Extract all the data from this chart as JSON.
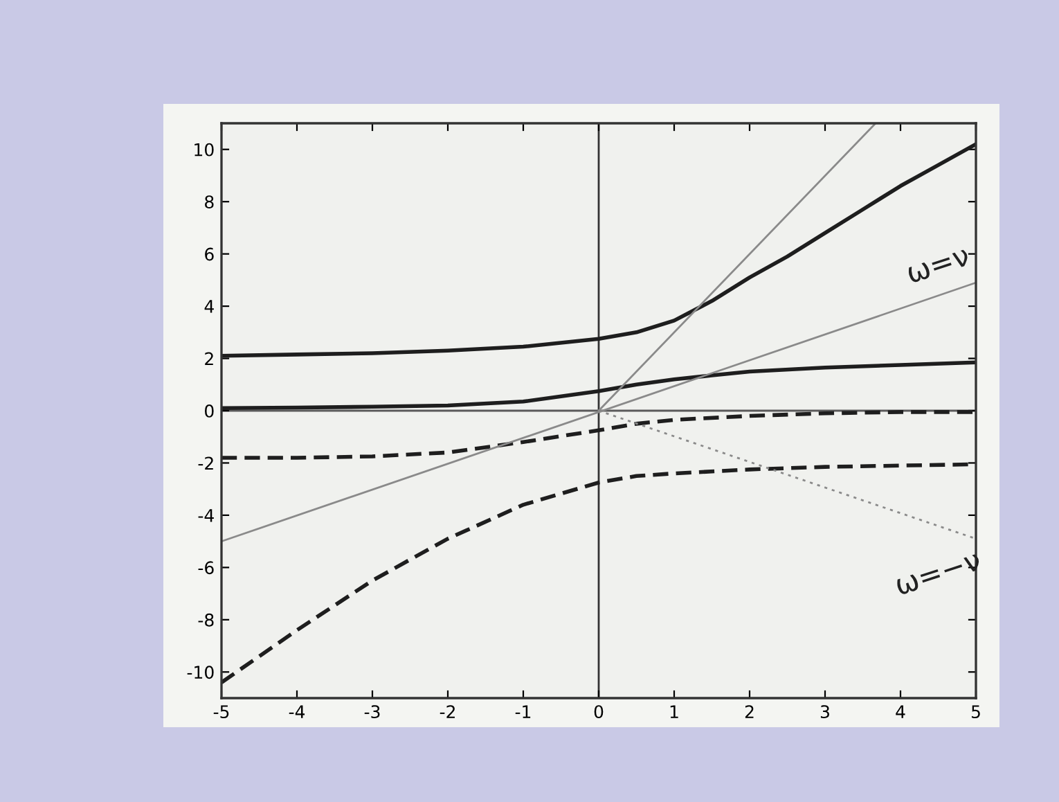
{
  "chart_data": {
    "type": "line",
    "xlim": [
      -5,
      5
    ],
    "ylim": [
      -11,
      11
    ],
    "xticks": [
      -5,
      -4,
      -3,
      -2,
      -1,
      0,
      1,
      2,
      3,
      4,
      5
    ],
    "yticks": [
      -10,
      -8,
      -6,
      -4,
      -2,
      0,
      2,
      4,
      6,
      8,
      10
    ],
    "grid": false,
    "legend": false,
    "marker": "none",
    "series": [
      {
        "color": "#1e1e1e",
        "line_style": "solid",
        "x": [
          -5,
          -4,
          -3,
          -2,
          -1,
          0,
          0.5,
          1,
          1.5,
          2,
          2.5,
          3,
          3.5,
          4,
          4.5,
          5
        ],
        "values": [
          2.1,
          2.15,
          2.2,
          2.3,
          2.45,
          2.75,
          3.0,
          3.45,
          4.2,
          5.1,
          5.9,
          6.8,
          7.7,
          8.6,
          9.4,
          10.2
        ]
      },
      {
        "color": "#1e1e1e",
        "line_style": "solid",
        "x": [
          -5,
          -4,
          -3,
          -2,
          -1,
          0,
          0.5,
          1,
          1.5,
          2,
          3,
          4,
          5
        ],
        "values": [
          0.1,
          0.12,
          0.15,
          0.2,
          0.35,
          0.75,
          1.0,
          1.2,
          1.35,
          1.5,
          1.65,
          1.75,
          1.85
        ]
      },
      {
        "color": "#1e1e1e",
        "line_style": "dashed",
        "x": [
          -5,
          -4,
          -3,
          -2,
          -1,
          0,
          0.5,
          1,
          2,
          3,
          4,
          5
        ],
        "values": [
          -1.8,
          -1.8,
          -1.75,
          -1.6,
          -1.2,
          -0.75,
          -0.5,
          -0.35,
          -0.2,
          -0.1,
          -0.05,
          -0.05
        ]
      },
      {
        "color": "#1e1e1e",
        "line_style": "dashed",
        "x": [
          -5,
          -4,
          -3,
          -2,
          -1,
          0,
          0.5,
          1,
          2,
          3,
          4,
          5
        ],
        "values": [
          -10.4,
          -8.4,
          -6.5,
          -4.9,
          -3.6,
          -2.75,
          -2.5,
          -2.4,
          -2.25,
          -2.15,
          -2.1,
          -2.05
        ]
      },
      {
        "color": "#8a8a8a",
        "line_style": "solid",
        "x": [
          -5,
          5
        ],
        "values": [
          -5,
          4.9
        ]
      },
      {
        "color": "#8a8a8a",
        "line_style": "solid",
        "x": [
          0,
          3.67
        ],
        "values": [
          0,
          11
        ]
      },
      {
        "color": "#8a8a8a",
        "line_style": "dotted",
        "x": [
          0,
          5
        ],
        "values": [
          0,
          -4.9
        ]
      }
    ],
    "ref_lines": [
      {
        "axis": "x",
        "value": 0,
        "color": "#333333"
      },
      {
        "axis": "y",
        "value": 0,
        "color": "#5a5a5a"
      }
    ],
    "annotations": [
      {
        "text": "ω=ν",
        "x": 4.5,
        "y": 4.5
      },
      {
        "text": "ω=−ν",
        "x": 4.5,
        "y": -4.5
      }
    ]
  }
}
